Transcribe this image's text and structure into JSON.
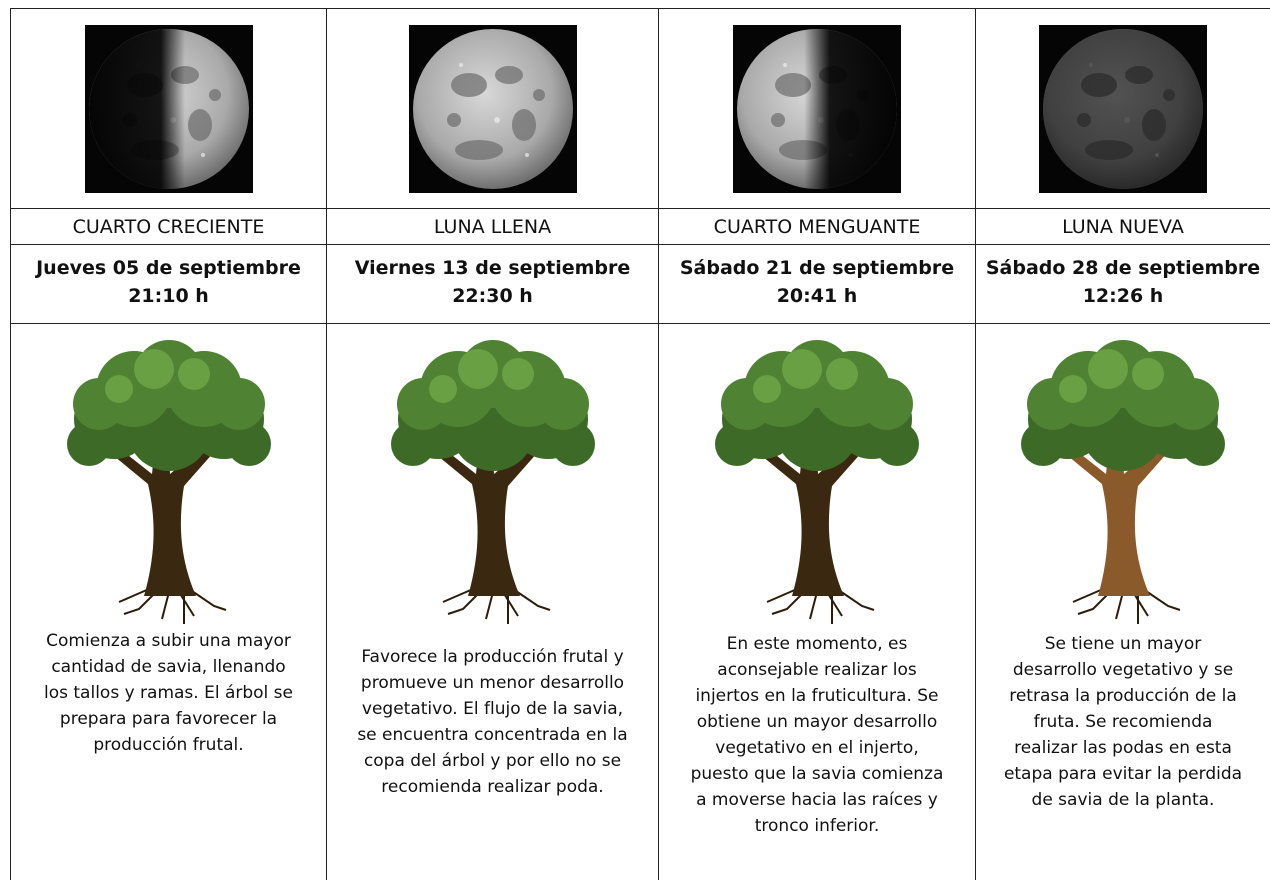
{
  "columns": [
    {
      "phase": "CUARTO CRECIENTE",
      "date": "Jueves 05 de septiembre",
      "time": "21:10 h",
      "description": [
        "Comienza a subir una mayor",
        "cantidad de savia, llenando",
        "los tallos y ramas. El árbol se",
        "prepara para favorecer la",
        "producción frutal."
      ]
    },
    {
      "phase": "LUNA LLENA",
      "date": "Viernes 13 de septiembre",
      "time": "22:30 h",
      "description": [
        "Favorece la producción frutal y",
        "promueve un menor desarrollo",
        "vegetativo. El flujo de la savia,",
        "se encuentra concentrada en la",
        "copa del árbol y por ello no se",
        "recomienda realizar poda."
      ]
    },
    {
      "phase": "CUARTO MENGUANTE",
      "date": "Sábado 21 de septiembre",
      "time": "20:41 h",
      "description": [
        "En este momento, es",
        "aconsejable realizar los",
        "injertos en la fruticultura. Se",
        "obtiene un mayor desarrollo",
        "vegetativo en el injerto,",
        "puesto que la savia comienza",
        "a moverse hacia las raíces y",
        "tronco inferior."
      ]
    },
    {
      "phase": "LUNA NUEVA",
      "date": "Sábado 28 de septiembre",
      "time": "12:26 h",
      "description": [
        "Se tiene un mayor",
        "desarrollo vegetativo y se",
        "retrasa la producción de la",
        "fruta. Se recomienda",
        "realizar las podas en esta",
        "etapa para evitar la perdida",
        "de savia de la planta."
      ]
    }
  ]
}
